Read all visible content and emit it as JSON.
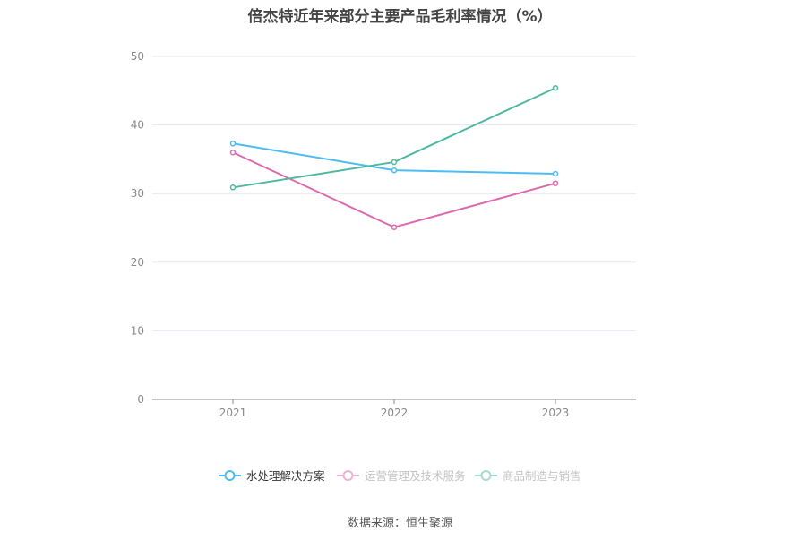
{
  "chart_data": {
    "type": "line",
    "title": "倍杰特近年来部分主要产品毛利率情况（%）",
    "categories": [
      "2021",
      "2022",
      "2023"
    ],
    "ylim": [
      0,
      50
    ],
    "yticks": [
      0,
      10,
      20,
      30,
      40,
      50
    ],
    "grid": true,
    "legend_position": "bottom",
    "series": [
      {
        "name": "水处理解决方案",
        "values": [
          37.3,
          33.4,
          32.9
        ],
        "color": "#4dbcf2",
        "active": true
      },
      {
        "name": "运营管理及技术服务",
        "values": [
          36.0,
          25.1,
          31.5
        ],
        "color": "#dc6aae",
        "active": false
      },
      {
        "name": "商品制造与销售",
        "values": [
          30.9,
          34.6,
          45.4
        ],
        "color": "#4fb8a0",
        "active": false
      }
    ]
  },
  "source": "数据来源：恒生聚源"
}
